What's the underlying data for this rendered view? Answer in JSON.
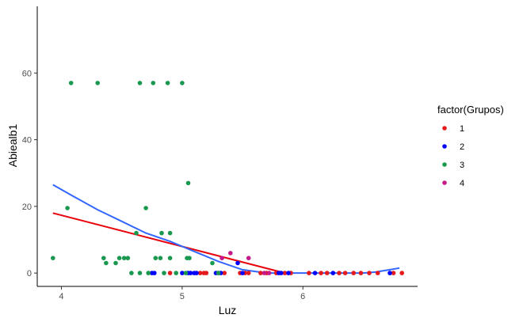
{
  "chart_data": {
    "type": "scatter",
    "title": "",
    "xlabel": "Luz",
    "ylabel": "Abiealb1",
    "xlim": [
      3.8,
      6.95
    ],
    "ylim": [
      -4,
      80
    ],
    "xticks": [
      4,
      5,
      6
    ],
    "yticks": [
      0,
      20,
      40,
      60
    ],
    "grid": false,
    "legend": {
      "title": "factor(Grupos)",
      "placement": "right",
      "entries": [
        {
          "label": "1",
          "color": "#E41A1C"
        },
        {
          "label": "2",
          "color": "#0000FF"
        },
        {
          "label": "3",
          "color": "#1A9850"
        },
        {
          "label": "4",
          "color": "#C51B8A"
        }
      ]
    },
    "series": [
      {
        "name": "1",
        "color": "#E41A1C",
        "points": [
          [
            4.9,
            0
          ],
          [
            5.15,
            0
          ],
          [
            5.18,
            0
          ],
          [
            5.2,
            0
          ],
          [
            5.3,
            0
          ],
          [
            5.35,
            0
          ],
          [
            5.48,
            0
          ],
          [
            5.52,
            0
          ],
          [
            5.55,
            0
          ],
          [
            5.65,
            0
          ],
          [
            5.7,
            0
          ],
          [
            5.78,
            0
          ],
          [
            5.85,
            0
          ],
          [
            5.9,
            0
          ],
          [
            6.05,
            0
          ],
          [
            6.15,
            0
          ],
          [
            6.2,
            0
          ],
          [
            6.3,
            0
          ],
          [
            6.35,
            0
          ],
          [
            6.42,
            0
          ],
          [
            6.48,
            0
          ],
          [
            6.55,
            0
          ],
          [
            6.62,
            0
          ],
          [
            6.75,
            0
          ],
          [
            6.82,
            0
          ]
        ]
      },
      {
        "name": "2",
        "color": "#0000FF",
        "points": [
          [
            4.75,
            0
          ],
          [
            4.77,
            0
          ],
          [
            5.0,
            0
          ],
          [
            5.05,
            0
          ],
          [
            5.07,
            0
          ],
          [
            5.1,
            0
          ],
          [
            5.12,
            0
          ],
          [
            5.28,
            0
          ],
          [
            5.32,
            0
          ],
          [
            5.46,
            3
          ],
          [
            5.5,
            0
          ],
          [
            5.8,
            0
          ],
          [
            5.82,
            0
          ],
          [
            5.88,
            0
          ],
          [
            6.1,
            0
          ],
          [
            6.25,
            0
          ],
          [
            6.72,
            0
          ]
        ]
      },
      {
        "name": "3",
        "color": "#1A9850",
        "points": [
          [
            3.93,
            4.5
          ],
          [
            4.05,
            19.5
          ],
          [
            4.08,
            57
          ],
          [
            4.3,
            57
          ],
          [
            4.35,
            4.5
          ],
          [
            4.37,
            3
          ],
          [
            4.45,
            3
          ],
          [
            4.48,
            4.5
          ],
          [
            4.52,
            4.5
          ],
          [
            4.55,
            4.5
          ],
          [
            4.58,
            0
          ],
          [
            4.62,
            12
          ],
          [
            4.65,
            0
          ],
          [
            4.65,
            57
          ],
          [
            4.7,
            19.5
          ],
          [
            4.72,
            0
          ],
          [
            4.76,
            57
          ],
          [
            4.78,
            4.5
          ],
          [
            4.82,
            4.5
          ],
          [
            4.83,
            12
          ],
          [
            4.85,
            0
          ],
          [
            4.88,
            57
          ],
          [
            4.9,
            12
          ],
          [
            4.9,
            4.5
          ],
          [
            4.95,
            0
          ],
          [
            5.0,
            57
          ],
          [
            5.03,
            0
          ],
          [
            5.04,
            4.5
          ],
          [
            5.05,
            27
          ],
          [
            5.06,
            4.5
          ],
          [
            5.25,
            3
          ],
          [
            5.3,
            0
          ]
        ]
      },
      {
        "name": "4",
        "color": "#C51B8A",
        "points": [
          [
            5.33,
            4.5
          ],
          [
            5.4,
            6
          ],
          [
            5.55,
            4.5
          ],
          [
            5.68,
            0
          ],
          [
            5.72,
            0
          ]
        ]
      }
    ],
    "smooth_lines": [
      {
        "name": "lm",
        "color": "#E8000B",
        "points": [
          [
            3.93,
            18
          ],
          [
            5.85,
            0
          ]
        ]
      },
      {
        "name": "loess",
        "color": "#3366FF",
        "points": [
          [
            3.93,
            26.5
          ],
          [
            4.1,
            23
          ],
          [
            4.3,
            19
          ],
          [
            4.5,
            15.5
          ],
          [
            4.7,
            12
          ],
          [
            4.9,
            9.5
          ],
          [
            5.1,
            6.5
          ],
          [
            5.3,
            3.5
          ],
          [
            5.5,
            1
          ],
          [
            5.7,
            0
          ],
          [
            5.9,
            0
          ],
          [
            6.1,
            0
          ],
          [
            6.3,
            0
          ],
          [
            6.5,
            0
          ],
          [
            6.6,
            0.3
          ],
          [
            6.72,
            1
          ],
          [
            6.8,
            1.5
          ]
        ]
      }
    ]
  }
}
